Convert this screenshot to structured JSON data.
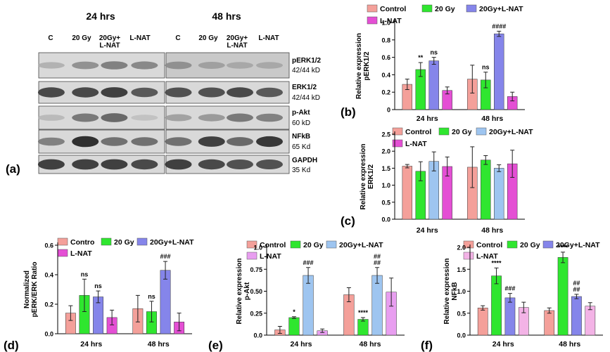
{
  "figure": {
    "panel_labels": [
      "(a)",
      "(b)",
      "(c)",
      "(d)",
      "(e)",
      "(f)"
    ],
    "blot": {
      "time_headers": [
        "24 hrs",
        "48 hrs"
      ],
      "lane_labels_24": [
        "C",
        "20 Gy",
        "20Gy+\nL-NAT",
        "L-NAT"
      ],
      "lane_labels_48": [
        "C",
        "20 Gy",
        "20Gy+\nL-NAT",
        "L-NAT"
      ],
      "rows": [
        {
          "protein": "pERK1/2",
          "size": "42/44 kD"
        },
        {
          "protein": "ERK1/2",
          "size": "42/44 kD"
        },
        {
          "protein": "p-Akt",
          "size": "60 kD"
        },
        {
          "protein": "NFkB",
          "size": "65 Kd"
        },
        {
          "protein": "GAPDH",
          "size": "35 Kd"
        }
      ]
    }
  },
  "colors": {
    "control": "#f4a09a",
    "gy20": "#2fe62f",
    "combo_b": "#8585ea",
    "combo_c": "#9ec5f0",
    "lnat": "#e44fd4",
    "lnat_f": "#f3b3e6"
  },
  "chart_data": [
    {
      "id": "b",
      "type": "bar",
      "ylabel": "Relative expression\npERK1/2",
      "categories": [
        "24 hrs",
        "48 hrs"
      ],
      "ylim": [
        0,
        1.0
      ],
      "yticks": [
        0,
        0.2,
        0.4,
        0.6,
        0.8,
        1.0
      ],
      "ytick_labels": [
        "0",
        "0.2",
        "0.4",
        "0.6",
        "0.8",
        "1.0"
      ],
      "legend": [
        "Control",
        "20 Gy",
        "20Gy+L-NAT",
        "L-NAT"
      ],
      "series_colors": [
        "#f4a09a",
        "#2fe62f",
        "#8585ea",
        "#e44fd4"
      ],
      "series": [
        {
          "name": "Control",
          "values": [
            0.29,
            0.35
          ],
          "errors": [
            0.06,
            0.16
          ]
        },
        {
          "name": "20 Gy",
          "values": [
            0.46,
            0.34
          ],
          "errors": [
            0.08,
            0.09
          ]
        },
        {
          "name": "20Gy+L-NAT",
          "values": [
            0.56,
            0.87
          ],
          "errors": [
            0.04,
            0.03
          ]
        },
        {
          "name": "L-NAT",
          "values": [
            0.22,
            0.15
          ],
          "errors": [
            0.04,
            0.05
          ]
        }
      ],
      "annotations": [
        {
          "category": 0,
          "series": 1,
          "text": "**"
        },
        {
          "category": 0,
          "series": 2,
          "text": "ns"
        },
        {
          "category": 1,
          "series": 1,
          "text": "ns"
        },
        {
          "category": 1,
          "series": 2,
          "text": "####"
        }
      ]
    },
    {
      "id": "c",
      "type": "bar",
      "ylabel": "Relative expression\nERK1/2",
      "categories": [
        "24 hrs",
        "48 hrs"
      ],
      "ylim": [
        0,
        2.5
      ],
      "yticks": [
        0,
        0.5,
        1.0,
        1.5,
        2.0,
        2.5
      ],
      "ytick_labels": [
        "0.0",
        "0.5",
        "1.0",
        "1.5",
        "2.0",
        "2.5"
      ],
      "legend": [
        "Control",
        "20 Gy",
        "20Gy+L-NAT",
        "L-NAT"
      ],
      "series_colors": [
        "#f4a09a",
        "#2fe62f",
        "#9ec5f0",
        "#e44fd4"
      ],
      "series": [
        {
          "name": "Control",
          "values": [
            1.56,
            1.53
          ],
          "errors": [
            0.05,
            0.6
          ]
        },
        {
          "name": "20 Gy",
          "values": [
            1.41,
            1.74
          ],
          "errors": [
            0.28,
            0.13
          ]
        },
        {
          "name": "20Gy+L-NAT",
          "values": [
            1.7,
            1.5
          ],
          "errors": [
            0.28,
            0.1
          ]
        },
        {
          "name": "L-NAT",
          "values": [
            1.55,
            1.63
          ],
          "errors": [
            0.28,
            0.4
          ]
        }
      ],
      "annotations": []
    },
    {
      "id": "d",
      "type": "bar",
      "ylabel": "Normalized\npERK/ERK Ratio",
      "categories": [
        "24 hrs",
        "48 hrs"
      ],
      "ylim": [
        0,
        0.6
      ],
      "yticks": [
        0,
        0.2,
        0.4,
        0.6
      ],
      "ytick_labels": [
        "0.0",
        "0.2",
        "0.4",
        "0.6"
      ],
      "legend": [
        "Contro",
        "20 Gy",
        "20Gy+L-NAT",
        "L-NAT"
      ],
      "series_colors": [
        "#f4a09a",
        "#2fe62f",
        "#8585ea",
        "#e44fd4"
      ],
      "series": [
        {
          "name": "Contro",
          "values": [
            0.14,
            0.17
          ],
          "errors": [
            0.05,
            0.09
          ]
        },
        {
          "name": "20 Gy",
          "values": [
            0.26,
            0.15
          ],
          "errors": [
            0.11,
            0.07
          ]
        },
        {
          "name": "20Gy+L-NAT",
          "values": [
            0.25,
            0.43
          ],
          "errors": [
            0.04,
            0.06
          ]
        },
        {
          "name": "L-NAT",
          "values": [
            0.11,
            0.08
          ],
          "errors": [
            0.05,
            0.06
          ]
        }
      ],
      "annotations": [
        {
          "category": 0,
          "series": 1,
          "text": "ns"
        },
        {
          "category": 0,
          "series": 2,
          "text": "ns"
        },
        {
          "category": 1,
          "series": 1,
          "text": "ns"
        },
        {
          "category": 1,
          "series": 2,
          "text": "###"
        }
      ]
    },
    {
      "id": "e",
      "type": "bar",
      "ylabel": "Relative expression\np-Akt",
      "categories": [
        "24 hrs",
        "48 hrs"
      ],
      "ylim": [
        0,
        1.0
      ],
      "yticks": [
        0,
        0.25,
        0.5,
        0.75,
        1.0
      ],
      "ytick_labels": [
        "0.0",
        "0.25",
        "0.50",
        "0.75",
        "1.0"
      ],
      "legend": [
        "Control",
        "20 Gy",
        "20Gy+L-NAT",
        "L-NAT"
      ],
      "series_colors": [
        "#f4a09a",
        "#2fe62f",
        "#9ec5f0",
        "#e89ef0"
      ],
      "series": [
        {
          "name": "Control",
          "values": [
            0.06,
            0.46
          ],
          "errors": [
            0.04,
            0.08
          ]
        },
        {
          "name": "20 Gy",
          "values": [
            0.2,
            0.18
          ],
          "errors": [
            0.01,
            0.02
          ]
        },
        {
          "name": "20Gy+L-NAT",
          "values": [
            0.68,
            0.68
          ],
          "errors": [
            0.09,
            0.09
          ]
        },
        {
          "name": "L-NAT",
          "values": [
            0.05,
            0.49
          ],
          "errors": [
            0.02,
            0.16
          ]
        }
      ],
      "annotations": [
        {
          "category": 0,
          "series": 1,
          "text": "*"
        },
        {
          "category": 0,
          "series": 2,
          "text": "###"
        },
        {
          "category": 1,
          "series": 1,
          "text": "****"
        },
        {
          "category": 1,
          "series": 2,
          "text": "##\n##"
        }
      ]
    },
    {
      "id": "f",
      "type": "bar",
      "ylabel": "Relative expression\nNFkB",
      "categories": [
        "24 hrs",
        "48 hrs"
      ],
      "ylim": [
        0,
        2.0
      ],
      "yticks": [
        0,
        0.5,
        1.0,
        1.5,
        2.0
      ],
      "ytick_labels": [
        "0.0",
        "0.5",
        "1.0",
        "1.5",
        "2.0"
      ],
      "legend": [
        "Control",
        "20 Gy",
        "20Gy+L-NAT",
        "L-NAT"
      ],
      "series_colors": [
        "#f4a09a",
        "#2fe62f",
        "#8585ea",
        "#f3b3e6"
      ],
      "series": [
        {
          "name": "Control",
          "values": [
            0.62,
            0.56
          ],
          "errors": [
            0.05,
            0.06
          ]
        },
        {
          "name": "20 Gy",
          "values": [
            1.35,
            1.77
          ],
          "errors": [
            0.18,
            0.12
          ]
        },
        {
          "name": "20Gy+L-NAT",
          "values": [
            0.85,
            0.88
          ],
          "errors": [
            0.1,
            0.05
          ]
        },
        {
          "name": "L-NAT",
          "values": [
            0.63,
            0.66
          ],
          "errors": [
            0.12,
            0.08
          ]
        }
      ],
      "annotations": [
        {
          "category": 0,
          "series": 1,
          "text": "****"
        },
        {
          "category": 0,
          "series": 2,
          "text": "###"
        },
        {
          "category": 1,
          "series": 1,
          "text": "****"
        },
        {
          "category": 1,
          "series": 2,
          "text": "##\n##"
        }
      ]
    }
  ]
}
